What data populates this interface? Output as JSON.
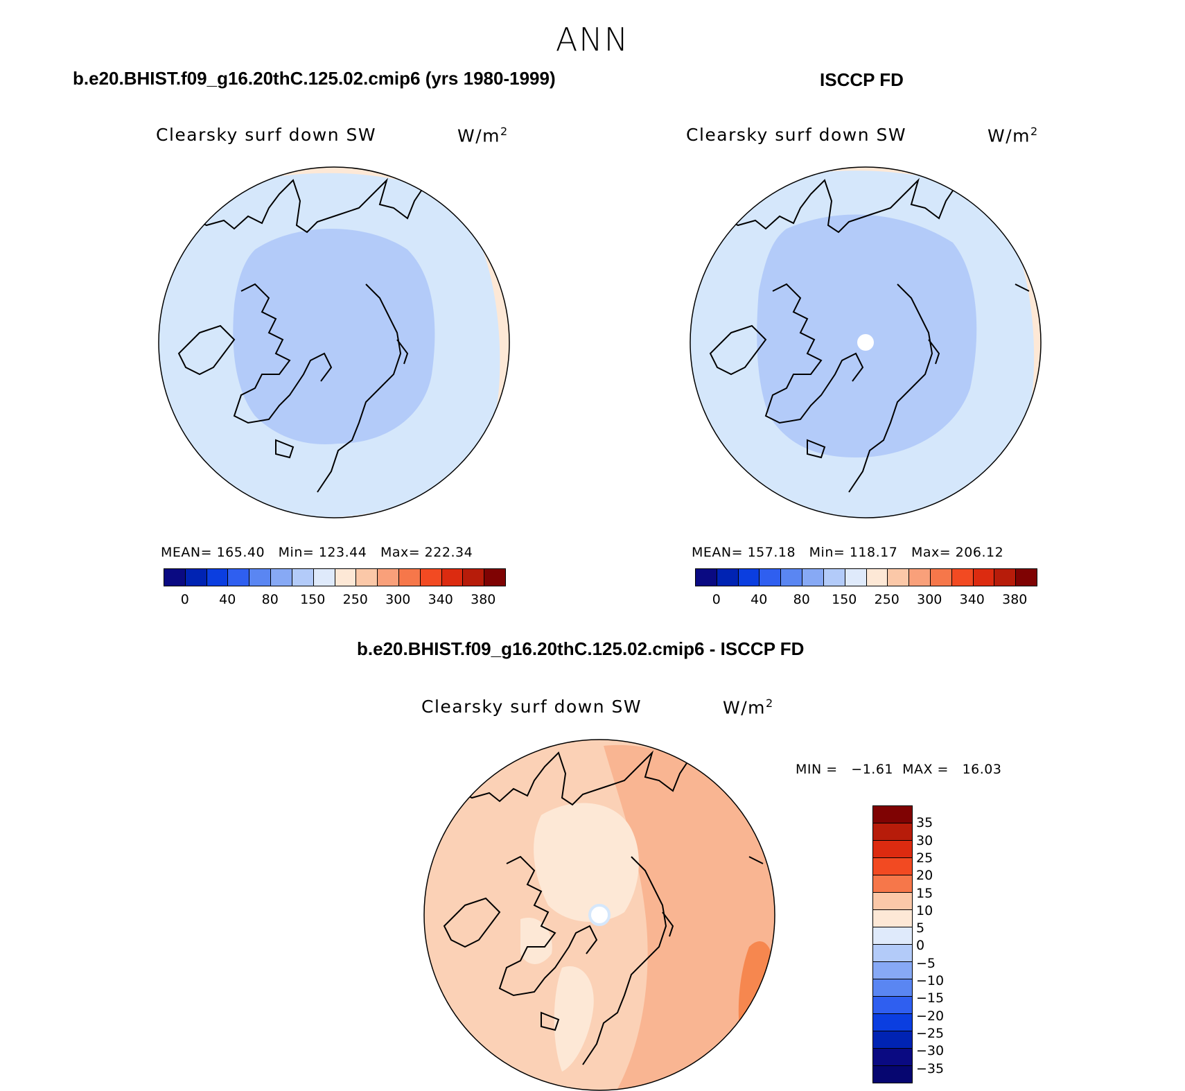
{
  "title": "ANN",
  "panels": [
    {
      "case_title": "b.e20.BHIST.f09_g16.20thC.125.02.cmip6 (yrs 1980-1999)",
      "variable": "Clearsky surf down SW",
      "units_base": "W/m",
      "units_sup": "2",
      "stats": "MEAN= 165.40   Min= 123.44   Max= 222.34"
    },
    {
      "case_title": "ISCCP FD",
      "variable": "Clearsky surf down SW",
      "units_base": "W/m",
      "units_sup": "2",
      "stats": "MEAN= 157.18   Min= 118.17   Max= 206.12"
    },
    {
      "case_title": "b.e20.BHIST.f09_g16.20thC.125.02.cmip6 - ISCCP FD",
      "variable": "Clearsky surf down SW",
      "units_base": "W/m",
      "units_sup": "2",
      "stats": "MIN =   −1.61  MAX =   16.03"
    }
  ],
  "colorbar_abs": {
    "colors": [
      "#0a0a82",
      "#0023b3",
      "#0b3ee0",
      "#2f5ff0",
      "#5a86f2",
      "#87a9f5",
      "#b3cbf9",
      "#dfeafb",
      "#fde8d6",
      "#fbc8a8",
      "#f9a07a",
      "#f6774a",
      "#f24a22",
      "#dc2b10",
      "#b71c0a",
      "#7f0303"
    ],
    "tick_labels": [
      "0",
      "40",
      "80",
      "150",
      "250",
      "300",
      "340",
      "380"
    ]
  },
  "colorbar_diff": {
    "colors": [
      "#7f0303",
      "#b71c0a",
      "#dc2b10",
      "#f24a22",
      "#f6774a",
      "#fbc8a8",
      "#fde8d6",
      "#dfeafb",
      "#b3cbf9",
      "#87a9f5",
      "#5a86f2",
      "#2f5ff0",
      "#0b3ee0",
      "#0023b3",
      "#0a0a82",
      "#060670"
    ],
    "tick_labels": [
      "35",
      "30",
      "25",
      "20",
      "15",
      "10",
      "5",
      "0",
      "−5",
      "−10",
      "−15",
      "−20",
      "−25",
      "−30",
      "−35"
    ]
  },
  "map_colors": {
    "outer_peach": "#fde8d6",
    "light_blue": "#d5e7fb",
    "mid_blue": "#b3cbf9",
    "diff_light": "#fbd1b6",
    "diff_mid": "#f9b592",
    "diff_strong": "#f6874f",
    "diff_pale": "#fde8d6",
    "coast": "#000000"
  }
}
